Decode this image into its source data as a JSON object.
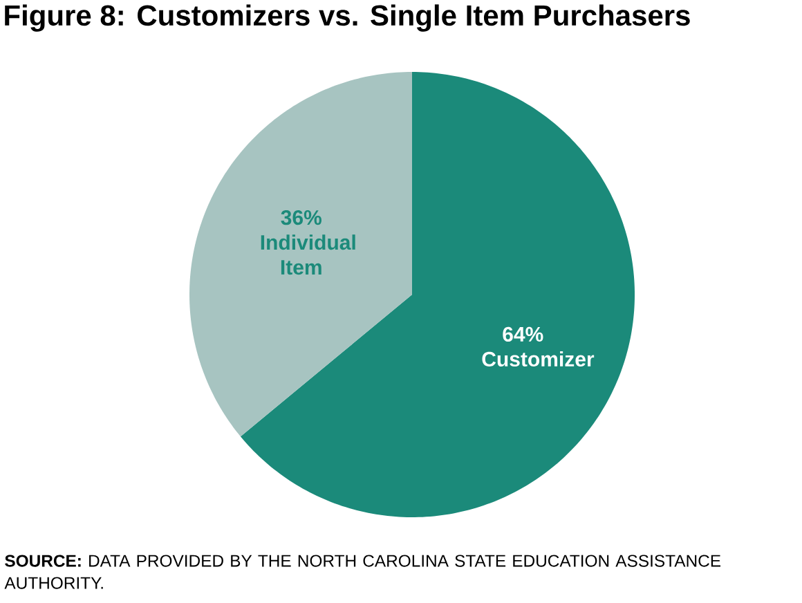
{
  "chart_data": {
    "type": "pie",
    "title": "Figure 8: Customizers vs. Single Item Purchasers",
    "categories": [
      "Customizer",
      "Individual Item"
    ],
    "values": [
      64,
      36
    ],
    "value_labels": [
      "64%",
      "36%"
    ],
    "colors": [
      "#1b8a7a",
      "#a7c4c1"
    ],
    "annotations": [
      "**SOURCE:** DATA PROVIDED BY THE NORTH CAROLINA STATE EDUCATION ASSISTANCE AUTHORITY."
    ]
  }
}
